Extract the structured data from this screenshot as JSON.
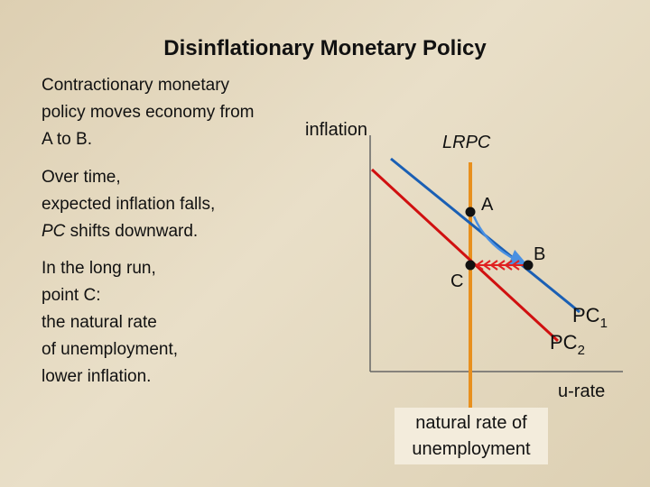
{
  "title": "Disinflationary Monetary Policy",
  "notes": {
    "first": [
      "Contractionary monetary",
      "policy moves economy from",
      "A to B."
    ],
    "second": {
      "lines": [
        "Over time,",
        "expected inflation falls,"
      ],
      "italic": "PC",
      "rest": " shifts downward."
    },
    "third": [
      "In the long run,",
      "point C:",
      "the natural rate",
      "of unemployment,",
      "lower inflation."
    ]
  },
  "diagram": {
    "y_axis_label": "inflation",
    "x_axis_label": "u-rate",
    "lrpc_label": "LRPC",
    "points": [
      "A",
      "B",
      "C"
    ],
    "pc1": {
      "label": "PC",
      "subscript": "1"
    },
    "pc2": {
      "label": "PC",
      "subscript": "2"
    },
    "natural_rate_label": [
      "natural rate of",
      "unemployment"
    ]
  }
}
